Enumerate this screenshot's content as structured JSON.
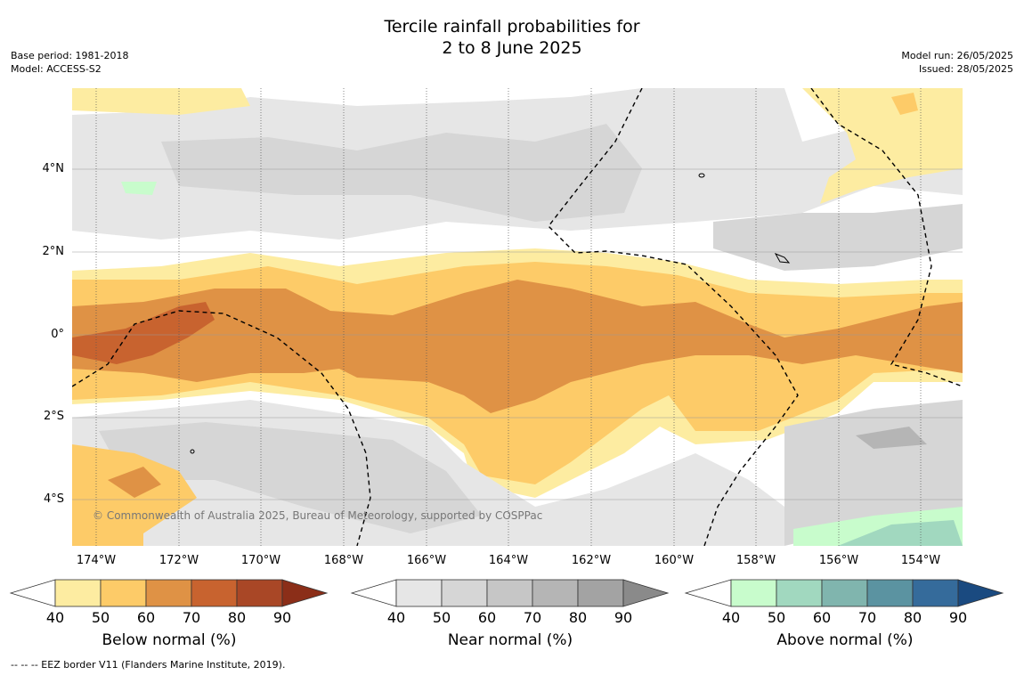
{
  "title_line1": "Tercile rainfall probabilities for",
  "title_line2": "2 to 8 June 2025",
  "meta_left": {
    "base_period": "Base period: 1981-2018",
    "model": "Model: ACCESS-S2"
  },
  "meta_right": {
    "model_run": "Model run: 26/05/2025",
    "issued": "Issued: 28/05/2025"
  },
  "map": {
    "lat_labels": [
      "4°N",
      "2°N",
      "0°",
      "2°S",
      "4°S"
    ],
    "lon_labels": [
      "174°W",
      "172°W",
      "170°W",
      "168°W",
      "166°W",
      "164°W",
      "162°W",
      "160°W",
      "158°W",
      "156°W",
      "154°W"
    ],
    "copyright": "© Commonwealth of Australia 2025, Bureau of Meteorology, supported by COSPPac"
  },
  "colorbars": [
    {
      "label": "Below normal (%)",
      "ticks": [
        "40",
        "50",
        "60",
        "70",
        "80",
        "90"
      ],
      "colors": [
        "#fdeca1",
        "#fdcb68",
        "#df9245",
        "#c8632f",
        "#a94726",
        "#8b2e18"
      ]
    },
    {
      "label": "Near normal (%)",
      "ticks": [
        "40",
        "50",
        "60",
        "70",
        "80",
        "90"
      ],
      "colors": [
        "#e6e6e6",
        "#d6d6d6",
        "#c6c6c6",
        "#b5b5b5",
        "#a3a3a3",
        "#8a8a8a"
      ]
    },
    {
      "label": "Above normal (%)",
      "ticks": [
        "40",
        "50",
        "60",
        "70",
        "80",
        "90"
      ],
      "colors": [
        "#c8fccc",
        "#a1d8bf",
        "#80b5ae",
        "#5b93a1",
        "#356b9b",
        "#1a4a80"
      ]
    }
  ],
  "footer": "--  --  -- EEZ border V11 (Flanders Marine Institute, 2019)."
}
